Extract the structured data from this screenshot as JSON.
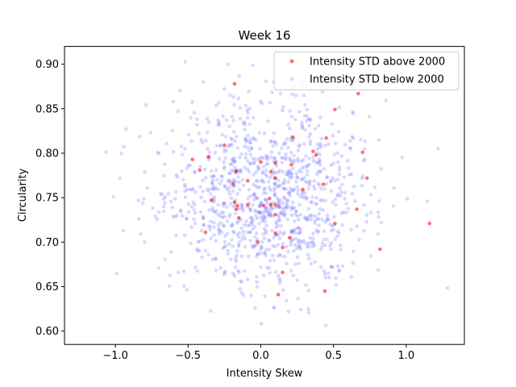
{
  "chart_data": {
    "type": "scatter",
    "title": "Week 16",
    "xlabel": "Intensity Skew",
    "ylabel": "Circularity",
    "xlim": [
      -1.35,
      1.4
    ],
    "ylim": [
      0.585,
      0.92
    ],
    "xticks": [
      -1.0,
      -0.5,
      0.0,
      0.5,
      1.0
    ],
    "xtick_labels": [
      "−1.0",
      "−0.5",
      "0.0",
      "0.5",
      "1.0"
    ],
    "yticks": [
      0.6,
      0.65,
      0.7,
      0.75,
      0.8,
      0.85,
      0.9
    ],
    "ytick_labels": [
      "0.60",
      "0.65",
      "0.70",
      "0.75",
      "0.80",
      "0.85",
      "0.90"
    ],
    "grid": false,
    "legend_position": "top-right",
    "series": [
      {
        "name": "Intensity STD above 2000",
        "color": "#ff0000",
        "opacity": 0.55,
        "points": [
          [
            -0.18,
            0.878
          ],
          [
            0.67,
            0.867
          ],
          [
            0.51,
            0.849
          ],
          [
            0.45,
            0.817
          ],
          [
            0.22,
            0.818
          ],
          [
            0.36,
            0.802
          ],
          [
            0.38,
            0.798
          ],
          [
            -0.47,
            0.793
          ],
          [
            -0.25,
            0.809
          ],
          [
            -0.36,
            0.796
          ],
          [
            -0.17,
            0.78
          ],
          [
            -0.42,
            0.781
          ],
          [
            0.0,
            0.79
          ],
          [
            0.1,
            0.789
          ],
          [
            0.07,
            0.779
          ],
          [
            0.21,
            0.787
          ],
          [
            0.7,
            0.801
          ],
          [
            0.73,
            0.772
          ],
          [
            0.1,
            0.772
          ],
          [
            -0.09,
            0.769
          ],
          [
            -0.19,
            0.765
          ],
          [
            0.43,
            0.765
          ],
          [
            0.29,
            0.759
          ],
          [
            -0.34,
            0.747
          ],
          [
            -0.18,
            0.745
          ],
          [
            -0.09,
            0.742
          ],
          [
            0.02,
            0.741
          ],
          [
            0.06,
            0.749
          ],
          [
            0.07,
            0.742
          ],
          [
            0.1,
            0.742
          ],
          [
            0.1,
            0.731
          ],
          [
            -0.16,
            0.741
          ],
          [
            -0.17,
            0.737
          ],
          [
            0.66,
            0.737
          ],
          [
            -0.15,
            0.727
          ],
          [
            0.51,
            0.721
          ],
          [
            1.16,
            0.721
          ],
          [
            -0.38,
            0.711
          ],
          [
            0.1,
            0.71
          ],
          [
            0.2,
            0.705
          ],
          [
            -0.02,
            0.7
          ],
          [
            0.15,
            0.694
          ],
          [
            0.82,
            0.692
          ],
          [
            0.15,
            0.666
          ],
          [
            0.44,
            0.645
          ],
          [
            0.12,
            0.641
          ]
        ]
      },
      {
        "name": "Intensity STD below 2000",
        "color": "#6666ff",
        "opacity": 0.25,
        "points": "generated"
      }
    ]
  }
}
